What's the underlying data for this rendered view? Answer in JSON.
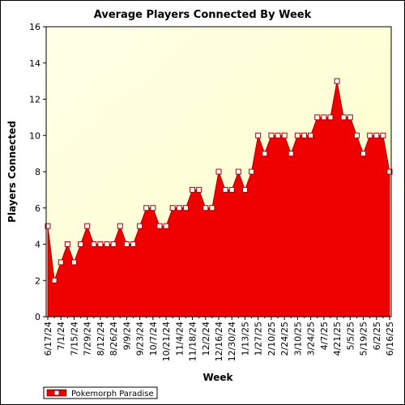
{
  "chart_data": {
    "type": "area",
    "title": "Average Players Connected By Week",
    "xlabel": "Week",
    "ylabel": "Players Connected",
    "ylim": [
      0,
      16
    ],
    "yticks": [
      0,
      2,
      4,
      6,
      8,
      10,
      12,
      14,
      16
    ],
    "grid": false,
    "legend_position": "bottom-left",
    "x_tick_labels": [
      "6/17/24",
      "7/1/24",
      "7/15/24",
      "7/29/24",
      "8/12/24",
      "8/26/24",
      "9/9/24",
      "9/23/24",
      "10/7/24",
      "10/21/24",
      "11/4/24",
      "11/18/24",
      "12/2/24",
      "12/16/24",
      "12/30/24",
      "1/13/25",
      "1/27/25",
      "2/10/25",
      "2/24/25",
      "3/10/25",
      "3/24/25",
      "4/7/25",
      "4/21/25",
      "5/5/25",
      "5/19/25",
      "6/2/25",
      "6/16/25"
    ],
    "x": [
      "6/17/24",
      "6/24/24",
      "7/1/24",
      "7/8/24",
      "7/15/24",
      "7/22/24",
      "7/29/24",
      "8/5/24",
      "8/12/24",
      "8/19/24",
      "8/26/24",
      "9/2/24",
      "9/9/24",
      "9/16/24",
      "9/23/24",
      "9/30/24",
      "10/7/24",
      "10/14/24",
      "10/21/24",
      "10/28/24",
      "11/4/24",
      "11/11/24",
      "11/18/24",
      "11/25/24",
      "12/2/24",
      "12/9/24",
      "12/16/24",
      "12/23/24",
      "12/30/24",
      "1/6/25",
      "1/13/25",
      "1/20/25",
      "1/27/25",
      "2/3/25",
      "2/10/25",
      "2/17/25",
      "2/24/25",
      "3/3/25",
      "3/10/25",
      "3/17/25",
      "3/24/25",
      "3/31/25",
      "4/7/25",
      "4/14/25",
      "4/21/25",
      "4/28/25",
      "5/5/25",
      "5/12/25",
      "5/19/25",
      "5/26/25",
      "6/2/25",
      "6/9/25",
      "6/16/25"
    ],
    "series": [
      {
        "name": "Pokemorph Paradise",
        "color": "#ee0000",
        "values": [
          5,
          2,
          3,
          4,
          3,
          4,
          5,
          4,
          4,
          4,
          4,
          5,
          4,
          4,
          5,
          6,
          6,
          5,
          5,
          6,
          6,
          6,
          7,
          7,
          6,
          6,
          8,
          7,
          7,
          8,
          7,
          8,
          10,
          9,
          10,
          10,
          10,
          9,
          10,
          10,
          10,
          11,
          11,
          11,
          13,
          11,
          11,
          10,
          9,
          10,
          10,
          10,
          8
        ]
      }
    ],
    "plot_background": "#ffffe0",
    "marker_color": "#ffffff"
  }
}
